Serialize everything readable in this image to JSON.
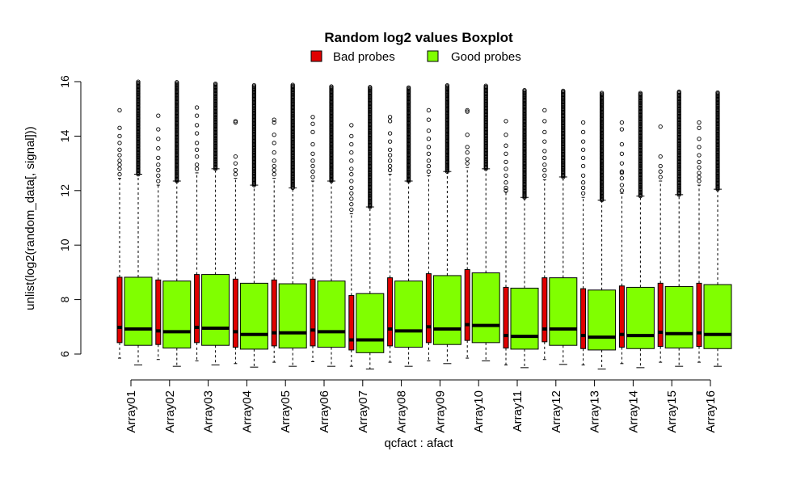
{
  "chart_data": {
    "type": "boxplot",
    "title": "Random log2 values Boxplot",
    "xlabel": "qcfact : afact",
    "ylabel": "unlist(log2(random_data[, signal]))",
    "ylim": [
      6,
      16
    ],
    "yticks": [
      6,
      8,
      10,
      12,
      14,
      16
    ],
    "grid": false,
    "legend_position": "top",
    "categories": [
      "Array01",
      "Array02",
      "Array03",
      "Array04",
      "Array05",
      "Array06",
      "Array07",
      "Array08",
      "Array09",
      "Array10",
      "Array11",
      "Array12",
      "Array13",
      "Array14",
      "Array15",
      "Array16"
    ],
    "series": [
      {
        "name": "Bad probes",
        "color": "#e00000",
        "boxes": [
          {
            "min": 5.85,
            "q1": 6.42,
            "median": 6.98,
            "q3": 8.82,
            "max": 12.45,
            "outliers": [
              12.6,
              12.8,
              12.95,
              13.1,
              13.3,
              13.5,
              13.75,
              14.0,
              14.3,
              14.95
            ]
          },
          {
            "min": 5.8,
            "q1": 6.35,
            "median": 6.85,
            "q3": 8.72,
            "max": 12.2,
            "outliers": [
              12.35,
              12.55,
              12.75,
              12.95,
              13.2,
              13.55,
              13.9,
              14.25,
              14.75
            ]
          },
          {
            "min": 5.75,
            "q1": 6.42,
            "median": 6.98,
            "q3": 8.92,
            "max": 12.65,
            "outliers": [
              12.8,
              12.95,
              13.25,
              13.5,
              13.75,
              14.1,
              14.4,
              14.75,
              15.05
            ]
          },
          {
            "min": 5.65,
            "q1": 6.25,
            "median": 6.82,
            "q3": 8.75,
            "max": 12.45,
            "outliers": [
              12.6,
              12.75,
              13.0,
              13.25,
              14.5,
              14.55
            ]
          },
          {
            "min": 5.7,
            "q1": 6.3,
            "median": 6.78,
            "q3": 8.72,
            "max": 12.45,
            "outliers": [
              12.6,
              12.75,
              12.9,
              13.1,
              13.4,
              13.75,
              14.05,
              14.5,
              14.6
            ]
          },
          {
            "min": 5.72,
            "q1": 6.3,
            "median": 6.88,
            "q3": 8.75,
            "max": 12.35,
            "outliers": [
              12.5,
              12.7,
              12.9,
              13.1,
              13.35,
              13.7,
              14.15,
              14.45,
              14.7
            ]
          },
          {
            "min": 5.55,
            "q1": 6.15,
            "median": 6.52,
            "q3": 8.15,
            "max": 11.15,
            "outliers": [
              11.3,
              11.5,
              11.7,
              11.9,
              12.1,
              12.35,
              12.6,
              12.8,
              13.1,
              13.4,
              13.7,
              14.0,
              14.4
            ]
          },
          {
            "min": 5.7,
            "q1": 6.3,
            "median": 6.92,
            "q3": 8.8,
            "max": 12.6,
            "outliers": [
              12.75,
              12.9,
              13.1,
              13.3,
              13.5,
              13.8,
              14.1,
              14.55,
              14.7
            ]
          },
          {
            "min": 5.75,
            "q1": 6.42,
            "median": 7.0,
            "q3": 8.95,
            "max": 12.55,
            "outliers": [
              12.7,
              12.9,
              13.1,
              13.35,
              13.6,
              13.9,
              14.2,
              14.6,
              14.95
            ]
          },
          {
            "min": 5.85,
            "q1": 6.5,
            "median": 7.08,
            "q3": 9.1,
            "max": 12.85,
            "outliers": [
              13.0,
              13.15,
              13.4,
              13.6,
              14.05,
              14.9,
              14.95
            ]
          },
          {
            "min": 5.6,
            "q1": 6.22,
            "median": 6.68,
            "q3": 8.45,
            "max": 11.95,
            "outliers": [
              12.0,
              12.1,
              12.3,
              12.55,
              12.8,
              13.05,
              13.35,
              13.65,
              14.05,
              14.55
            ]
          },
          {
            "min": 5.8,
            "q1": 6.45,
            "median": 6.92,
            "q3": 8.8,
            "max": 12.4,
            "outliers": [
              12.55,
              12.75,
              12.95,
              13.2,
              13.45,
              13.8,
              14.15,
              14.55,
              14.95
            ]
          },
          {
            "min": 5.6,
            "q1": 6.2,
            "median": 6.68,
            "q3": 8.4,
            "max": 11.75,
            "outliers": [
              11.9,
              12.1,
              12.3,
              12.55,
              12.9,
              13.2,
              13.5,
              13.8,
              14.15,
              14.5
            ]
          },
          {
            "min": 5.65,
            "q1": 6.25,
            "median": 6.72,
            "q3": 8.5,
            "max": 11.9,
            "outliers": [
              12.0,
              12.2,
              12.45,
              12.65,
              12.7,
              13.0,
              13.35,
              13.7,
              14.25,
              14.5
            ]
          },
          {
            "min": 5.7,
            "q1": 6.28,
            "median": 6.8,
            "q3": 8.6,
            "max": 12.35,
            "outliers": [
              12.5,
              12.7,
              12.9,
              13.25,
              14.35
            ]
          },
          {
            "min": 5.7,
            "q1": 6.28,
            "median": 6.78,
            "q3": 8.6,
            "max": 12.2,
            "outliers": [
              12.35,
              12.5,
              12.65,
              12.85,
              13.05,
              13.3,
              13.6,
              13.9,
              14.3,
              14.5
            ]
          }
        ]
      },
      {
        "name": "Good probes",
        "color": "#80ff00",
        "boxes": [
          {
            "min": 5.6,
            "q1": 6.32,
            "median": 6.92,
            "q3": 8.82,
            "max": 12.6,
            "outliers_range": [
              12.6,
              16.0
            ]
          },
          {
            "min": 5.55,
            "q1": 6.22,
            "median": 6.82,
            "q3": 8.68,
            "max": 12.35,
            "outliers_range": [
              12.35,
              16.0
            ]
          },
          {
            "min": 5.6,
            "q1": 6.32,
            "median": 6.95,
            "q3": 8.92,
            "max": 12.8,
            "outliers_range": [
              12.8,
              15.95
            ]
          },
          {
            "min": 5.52,
            "q1": 6.18,
            "median": 6.72,
            "q3": 8.6,
            "max": 12.2,
            "outliers_range": [
              12.2,
              15.9
            ]
          },
          {
            "min": 5.55,
            "q1": 6.22,
            "median": 6.78,
            "q3": 8.58,
            "max": 12.1,
            "outliers_range": [
              12.1,
              15.9
            ]
          },
          {
            "min": 5.55,
            "q1": 6.25,
            "median": 6.82,
            "q3": 8.68,
            "max": 12.35,
            "outliers_range": [
              12.35,
              15.85
            ]
          },
          {
            "min": 5.45,
            "q1": 6.05,
            "median": 6.52,
            "q3": 8.22,
            "max": 11.4,
            "outliers_range": [
              11.4,
              15.8
            ]
          },
          {
            "min": 5.55,
            "q1": 6.25,
            "median": 6.85,
            "q3": 8.68,
            "max": 12.35,
            "outliers_range": [
              12.35,
              15.8
            ]
          },
          {
            "min": 5.65,
            "q1": 6.35,
            "median": 6.92,
            "q3": 8.88,
            "max": 12.7,
            "outliers_range": [
              12.7,
              15.9
            ]
          },
          {
            "min": 5.75,
            "q1": 6.42,
            "median": 7.05,
            "q3": 8.98,
            "max": 12.8,
            "outliers_range": [
              12.8,
              15.85
            ]
          },
          {
            "min": 5.5,
            "q1": 6.18,
            "median": 6.65,
            "q3": 8.42,
            "max": 11.75,
            "outliers_range": [
              11.75,
              15.7
            ]
          },
          {
            "min": 5.62,
            "q1": 6.32,
            "median": 6.92,
            "q3": 8.8,
            "max": 12.5,
            "outliers_range": [
              12.5,
              15.7
            ]
          },
          {
            "min": 5.45,
            "q1": 6.15,
            "median": 6.62,
            "q3": 8.35,
            "max": 11.65,
            "outliers_range": [
              11.65,
              15.6
            ]
          },
          {
            "min": 5.5,
            "q1": 6.2,
            "median": 6.68,
            "q3": 8.45,
            "max": 11.8,
            "outliers_range": [
              11.8,
              15.6
            ]
          },
          {
            "min": 5.55,
            "q1": 6.22,
            "median": 6.75,
            "q3": 8.48,
            "max": 11.85,
            "outliers_range": [
              11.85,
              15.65
            ]
          },
          {
            "min": 5.55,
            "q1": 6.2,
            "median": 6.72,
            "q3": 8.55,
            "max": 12.05,
            "outliers_range": [
              12.05,
              15.6
            ]
          }
        ]
      }
    ]
  }
}
